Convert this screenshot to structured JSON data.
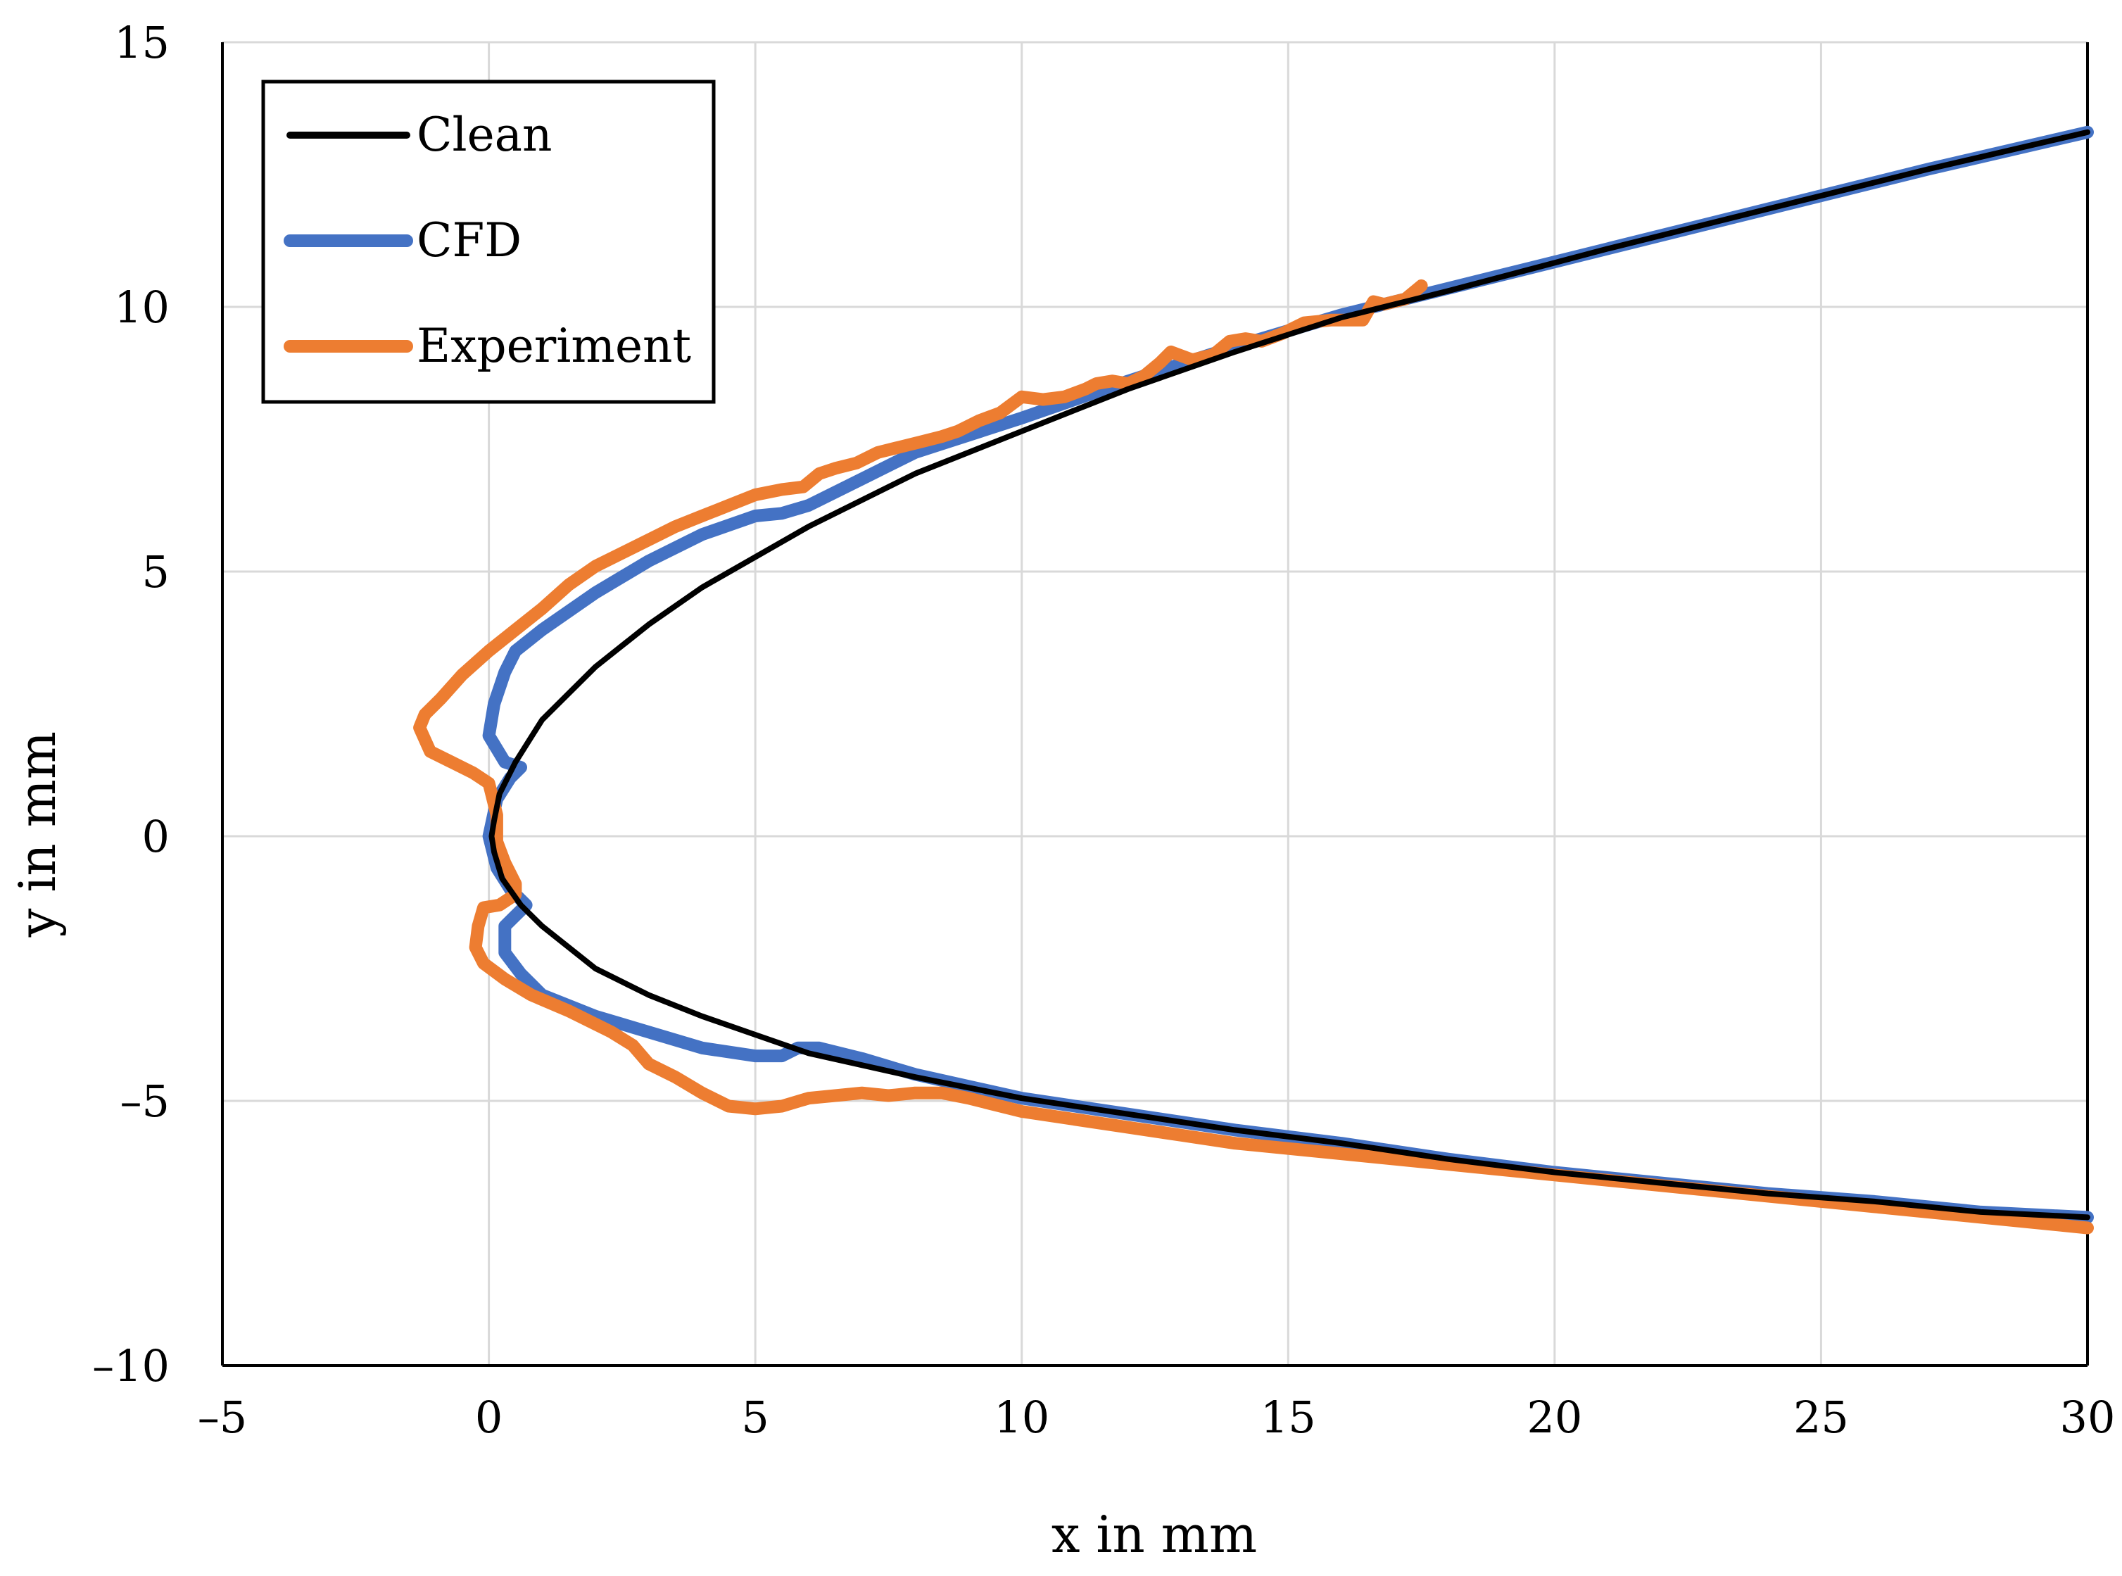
{
  "chart_data": {
    "type": "line",
    "title": "",
    "xlabel": "x in mm",
    "ylabel": "y in mm",
    "xlim": [
      -5,
      30
    ],
    "ylim": [
      -10,
      15
    ],
    "x_ticks": [
      -5,
      0,
      5,
      10,
      15,
      20,
      25,
      30
    ],
    "y_ticks": [
      -10,
      -5,
      0,
      5,
      10,
      15
    ],
    "x_tick_labels": [
      "–5",
      "0",
      "5",
      "10",
      "15",
      "20",
      "25",
      "30"
    ],
    "y_tick_labels": [
      "–10",
      "–5",
      "0",
      "5",
      "10",
      "15"
    ],
    "grid": true,
    "legend": {
      "position": "top-left",
      "entries": [
        "Clean",
        "CFD",
        "Experiment"
      ]
    },
    "series": [
      {
        "name": "Clean",
        "color": "#000000",
        "points": [
          [
            30,
            13.3
          ],
          [
            27,
            12.6
          ],
          [
            24,
            11.85
          ],
          [
            21,
            11.1
          ],
          [
            18,
            10.3
          ],
          [
            16,
            9.8
          ],
          [
            14,
            9.15
          ],
          [
            12,
            8.45
          ],
          [
            10,
            7.65
          ],
          [
            8,
            6.85
          ],
          [
            6,
            5.85
          ],
          [
            4,
            4.7
          ],
          [
            3,
            4.0
          ],
          [
            2,
            3.2
          ],
          [
            1,
            2.2
          ],
          [
            0.5,
            1.4
          ],
          [
            0.2,
            0.8
          ],
          [
            0.1,
            0.3
          ],
          [
            0.05,
            0
          ],
          [
            0.1,
            -0.3
          ],
          [
            0.25,
            -0.8
          ],
          [
            0.6,
            -1.3
          ],
          [
            1,
            -1.7
          ],
          [
            2,
            -2.5
          ],
          [
            3,
            -3.0
          ],
          [
            4,
            -3.4
          ],
          [
            5,
            -3.75
          ],
          [
            6,
            -4.1
          ],
          [
            8,
            -4.55
          ],
          [
            10,
            -4.95
          ],
          [
            12,
            -5.25
          ],
          [
            14,
            -5.55
          ],
          [
            16,
            -5.8
          ],
          [
            18,
            -6.1
          ],
          [
            20,
            -6.35
          ],
          [
            22,
            -6.55
          ],
          [
            24,
            -6.75
          ],
          [
            26,
            -6.9
          ],
          [
            28,
            -7.1
          ],
          [
            30,
            -7.2
          ]
        ]
      },
      {
        "name": "CFD",
        "color": "#4472C4",
        "points": [
          [
            30,
            13.3
          ],
          [
            27,
            12.6
          ],
          [
            24,
            11.85
          ],
          [
            21,
            11.1
          ],
          [
            18,
            10.35
          ],
          [
            16,
            9.85
          ],
          [
            14,
            9.25
          ],
          [
            12,
            8.6
          ],
          [
            10,
            7.9
          ],
          [
            8,
            7.25
          ],
          [
            7,
            6.75
          ],
          [
            6,
            6.25
          ],
          [
            5.5,
            6.1
          ],
          [
            5,
            6.05
          ],
          [
            4,
            5.7
          ],
          [
            3,
            5.2
          ],
          [
            2,
            4.6
          ],
          [
            1,
            3.9
          ],
          [
            0.5,
            3.5
          ],
          [
            0.3,
            3.1
          ],
          [
            0.1,
            2.5
          ],
          [
            0,
            1.9
          ],
          [
            0.3,
            1.4
          ],
          [
            0.6,
            1.3
          ],
          [
            0.4,
            1.1
          ],
          [
            0.15,
            0.7
          ],
          [
            0,
            0
          ],
          [
            0.15,
            -0.6
          ],
          [
            0.4,
            -1.0
          ],
          [
            0.7,
            -1.3
          ],
          [
            0.5,
            -1.5
          ],
          [
            0.3,
            -1.7
          ],
          [
            0.3,
            -2.2
          ],
          [
            0.6,
            -2.6
          ],
          [
            1,
            -3.0
          ],
          [
            2,
            -3.4
          ],
          [
            3,
            -3.7
          ],
          [
            4,
            -4.0
          ],
          [
            5,
            -4.15
          ],
          [
            5.5,
            -4.15
          ],
          [
            5.8,
            -4.0
          ],
          [
            6.2,
            -4.0
          ],
          [
            7,
            -4.2
          ],
          [
            8,
            -4.5
          ],
          [
            10,
            -4.95
          ],
          [
            12,
            -5.25
          ],
          [
            14,
            -5.55
          ],
          [
            16,
            -5.8
          ],
          [
            18,
            -6.1
          ],
          [
            20,
            -6.35
          ],
          [
            22,
            -6.55
          ],
          [
            24,
            -6.75
          ],
          [
            26,
            -6.9
          ],
          [
            28,
            -7.1
          ],
          [
            30,
            -7.2
          ]
        ]
      },
      {
        "name": "Experiment",
        "color": "#ED7D31",
        "points": [
          [
            17.5,
            10.4
          ],
          [
            17.2,
            10.15
          ],
          [
            16.8,
            10.05
          ],
          [
            16.6,
            10.1
          ],
          [
            16.4,
            9.75
          ],
          [
            15.8,
            9.75
          ],
          [
            15.3,
            9.7
          ],
          [
            14.9,
            9.5
          ],
          [
            14.5,
            9.35
          ],
          [
            14.2,
            9.4
          ],
          [
            13.9,
            9.35
          ],
          [
            13.6,
            9.1
          ],
          [
            13.2,
            9.0
          ],
          [
            12.8,
            9.15
          ],
          [
            12.6,
            8.95
          ],
          [
            12.3,
            8.7
          ],
          [
            12.0,
            8.55
          ],
          [
            11.7,
            8.6
          ],
          [
            11.4,
            8.55
          ],
          [
            11.2,
            8.45
          ],
          [
            10.8,
            8.3
          ],
          [
            10.4,
            8.25
          ],
          [
            10.0,
            8.3
          ],
          [
            9.6,
            8.0
          ],
          [
            9.2,
            7.85
          ],
          [
            8.8,
            7.65
          ],
          [
            8.5,
            7.55
          ],
          [
            8.1,
            7.45
          ],
          [
            7.7,
            7.35
          ],
          [
            7.3,
            7.25
          ],
          [
            6.9,
            7.05
          ],
          [
            6.5,
            6.95
          ],
          [
            6.2,
            6.85
          ],
          [
            5.9,
            6.6
          ],
          [
            5.5,
            6.55
          ],
          [
            5.0,
            6.45
          ],
          [
            4.5,
            6.25
          ],
          [
            4.0,
            6.05
          ],
          [
            3.5,
            5.85
          ],
          [
            3.0,
            5.6
          ],
          [
            2.5,
            5.35
          ],
          [
            2.0,
            5.1
          ],
          [
            1.5,
            4.75
          ],
          [
            1.0,
            4.3
          ],
          [
            0.5,
            3.9
          ],
          [
            0,
            3.5
          ],
          [
            -0.5,
            3.05
          ],
          [
            -0.9,
            2.6
          ],
          [
            -1.2,
            2.3
          ],
          [
            -1.3,
            2.05
          ],
          [
            -1.1,
            1.6
          ],
          [
            -0.7,
            1.4
          ],
          [
            -0.3,
            1.2
          ],
          [
            0,
            1.0
          ],
          [
            0.15,
            0.4
          ],
          [
            0.15,
            -0.1
          ],
          [
            0.3,
            -0.5
          ],
          [
            0.5,
            -0.9
          ],
          [
            0.5,
            -1.1
          ],
          [
            0.2,
            -1.3
          ],
          [
            -0.1,
            -1.35
          ],
          [
            -0.2,
            -1.7
          ],
          [
            -0.25,
            -2.1
          ],
          [
            -0.1,
            -2.4
          ],
          [
            0.3,
            -2.7
          ],
          [
            0.8,
            -3.0
          ],
          [
            1.5,
            -3.3
          ],
          [
            2.3,
            -3.7
          ],
          [
            2.7,
            -3.95
          ],
          [
            3.0,
            -4.3
          ],
          [
            3.5,
            -4.55
          ],
          [
            4.0,
            -4.85
          ],
          [
            4.5,
            -5.1
          ],
          [
            5.0,
            -5.15
          ],
          [
            5.5,
            -5.1
          ],
          [
            6.0,
            -4.95
          ],
          [
            6.5,
            -4.9
          ],
          [
            7.0,
            -4.85
          ],
          [
            7.5,
            -4.9
          ],
          [
            8.0,
            -4.85
          ],
          [
            8.5,
            -4.85
          ],
          [
            9.0,
            -4.95
          ],
          [
            10,
            -5.2
          ],
          [
            11,
            -5.35
          ],
          [
            12,
            -5.5
          ],
          [
            13,
            -5.65
          ],
          [
            14,
            -5.8
          ],
          [
            16,
            -6.0
          ],
          [
            18,
            -6.2
          ],
          [
            20,
            -6.4
          ],
          [
            22,
            -6.6
          ],
          [
            24,
            -6.8
          ],
          [
            26,
            -7.0
          ],
          [
            28,
            -7.2
          ],
          [
            30,
            -7.4
          ]
        ]
      }
    ]
  }
}
